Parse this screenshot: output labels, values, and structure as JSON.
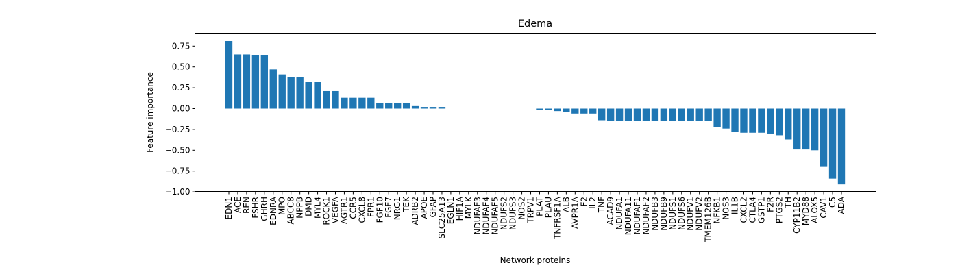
{
  "chart_data": {
    "type": "bar",
    "title": "Edema",
    "xlabel": "Network proteins",
    "ylabel": "Feature importance",
    "ylim": [
      -1.0,
      0.85
    ],
    "yticks": [
      "0.75",
      "0.50",
      "0.25",
      "0.00",
      "−0.25",
      "−0.50",
      "−0.75",
      "−1.00"
    ],
    "ytick_values": [
      0.75,
      0.5,
      0.25,
      0.0,
      -0.25,
      -0.5,
      -0.75,
      -1.0
    ],
    "bar_color": "#1f77b4",
    "grid": false,
    "categories": [
      "EDN1",
      "ACE",
      "REN",
      "FSHR",
      "GHRH",
      "EDNRA",
      "MPO",
      "ABCC8",
      "NPPB",
      "DMD",
      "MYL4",
      "ROCK1",
      "VEGFA",
      "AGTR1",
      "CCR5",
      "CXCL8",
      "FPR1",
      "FGF10",
      "FGF7",
      "NRG1",
      "TEK",
      "ADRB2",
      "APOE",
      "GFAP",
      "SLC25A13",
      "EGLN1",
      "HIF1A",
      "MYLK",
      "NDUFAF3",
      "NDUFAF4",
      "NDUFAF5",
      "NDUFS2",
      "NDUFS3",
      "NOS2",
      "TRPV1",
      "PLAT",
      "PLAU",
      "TNFRSF1A",
      "ALB",
      "AVPR1A",
      "F2",
      "IL2",
      "TNF",
      "ACAD9",
      "NDUFA1",
      "NDUFA11",
      "NDUFAF1",
      "NDUFAF2",
      "NDUFB3",
      "NDUFB9",
      "NDUFS1",
      "NDUFS6",
      "NDUFV1",
      "NDUFV2",
      "TMEM126B",
      "NFKB1",
      "NOS3",
      "IL1B",
      "CXCL2",
      "CTLA4",
      "GSTP1",
      "F2R",
      "PTGS2",
      "TH",
      "CYP11B2",
      "MYD88",
      "ALOX5",
      "CAV1",
      "C5",
      "ADA"
    ],
    "values": [
      0.81,
      0.65,
      0.65,
      0.64,
      0.64,
      0.47,
      0.41,
      0.38,
      0.38,
      0.32,
      0.32,
      0.21,
      0.21,
      0.13,
      0.13,
      0.13,
      0.13,
      0.07,
      0.07,
      0.07,
      0.07,
      0.03,
      0.02,
      0.02,
      0.02,
      0.0,
      0.0,
      0.0,
      0.0,
      0.0,
      0.0,
      0.0,
      0.0,
      0.0,
      0.0,
      -0.02,
      -0.02,
      -0.03,
      -0.04,
      -0.06,
      -0.06,
      -0.06,
      -0.14,
      -0.15,
      -0.15,
      -0.15,
      -0.15,
      -0.15,
      -0.15,
      -0.15,
      -0.15,
      -0.15,
      -0.15,
      -0.15,
      -0.15,
      -0.22,
      -0.24,
      -0.28,
      -0.29,
      -0.29,
      -0.29,
      -0.3,
      -0.32,
      -0.37,
      -0.49,
      -0.49,
      -0.5,
      -0.7,
      -0.84,
      -0.91
    ]
  }
}
